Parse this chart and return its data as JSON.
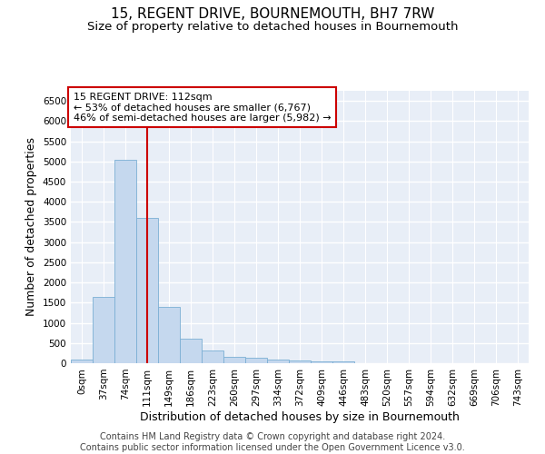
{
  "title": "15, REGENT DRIVE, BOURNEMOUTH, BH7 7RW",
  "subtitle": "Size of property relative to detached houses in Bournemouth",
  "xlabel": "Distribution of detached houses by size in Bournemouth",
  "ylabel": "Number of detached properties",
  "footer_line1": "Contains HM Land Registry data © Crown copyright and database right 2024.",
  "footer_line2": "Contains public sector information licensed under the Open Government Licence v3.0.",
  "bin_labels": [
    "0sqm",
    "37sqm",
    "74sqm",
    "111sqm",
    "149sqm",
    "186sqm",
    "223sqm",
    "260sqm",
    "297sqm",
    "334sqm",
    "372sqm",
    "409sqm",
    "446sqm",
    "483sqm",
    "520sqm",
    "557sqm",
    "594sqm",
    "632sqm",
    "669sqm",
    "706sqm",
    "743sqm"
  ],
  "bar_values": [
    80,
    1650,
    5050,
    3600,
    1400,
    600,
    310,
    160,
    130,
    90,
    60,
    40,
    50,
    0,
    0,
    0,
    0,
    0,
    0,
    0,
    0
  ],
  "bar_color": "#c5d8ee",
  "bar_edge_color": "#7bafd4",
  "property_line_index": 3,
  "property_line_color": "#cc0000",
  "annotation_line1": "15 REGENT DRIVE: 112sqm",
  "annotation_line2": "← 53% of detached houses are smaller (6,767)",
  "annotation_line3": "46% of semi-detached houses are larger (5,982) →",
  "annotation_box_edgecolor": "#cc0000",
  "ylim_max": 6750,
  "yticks": [
    0,
    500,
    1000,
    1500,
    2000,
    2500,
    3000,
    3500,
    4000,
    4500,
    5000,
    5500,
    6000,
    6500
  ],
  "bg_color": "#e8eef7",
  "grid_color": "#ffffff",
  "title_fontsize": 11,
  "subtitle_fontsize": 9.5,
  "axis_label_fontsize": 9,
  "tick_fontsize": 7.5,
  "annotation_fontsize": 8,
  "footer_fontsize": 7
}
